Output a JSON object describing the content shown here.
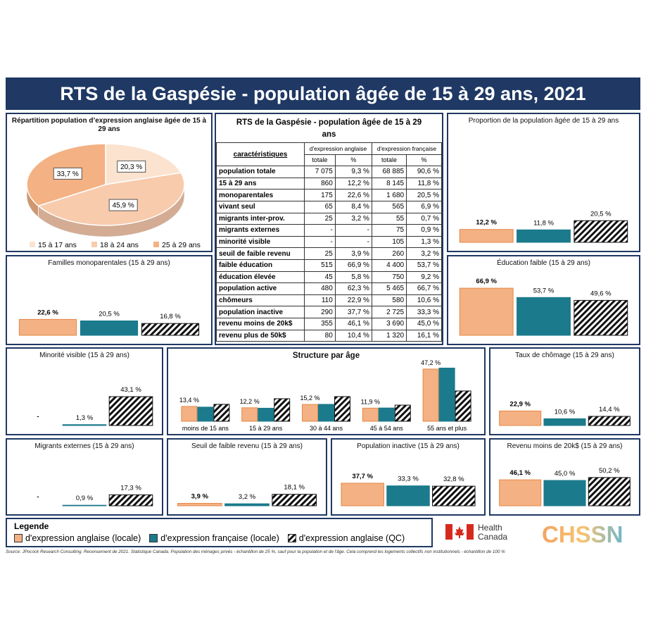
{
  "header": {
    "title": "RTS de la Gaspésie - population âgée de 15 à 29 ans, 2021"
  },
  "chart_data": [
    {
      "type": "pie",
      "title": "Répartition population d’expression anglaise âgée de 15 à 29 ans",
      "categories": [
        "15 à 17 ans",
        "18 à 24 ans",
        "25 à 29 ans"
      ],
      "values": [
        20.3,
        45.9,
        33.7
      ],
      "value_labels": [
        "20,3 %",
        "45,9 %",
        "33,7 %"
      ],
      "colors": [
        "#fbe3d0",
        "#f8cbad",
        "#f4b183"
      ]
    },
    {
      "type": "bar",
      "title": "Proportion de la population âgée de 15 à 29 ans",
      "values": [
        12.2,
        11.8,
        20.5
      ],
      "value_labels": [
        "12,2 %",
        "11,8 %",
        "20,5 %"
      ]
    },
    {
      "type": "bar",
      "title": "Familles monoparentales (15 à 29 ans)",
      "values": [
        22.6,
        20.5,
        16.8
      ],
      "value_labels": [
        "22,6 %",
        "20,5 %",
        "16,8 %"
      ]
    },
    {
      "type": "bar",
      "title": "Éducation faible (15 à 29 ans)",
      "values": [
        66.9,
        53.7,
        49.6
      ],
      "value_labels": [
        "66,9 %",
        "53,7 %",
        "49,6 %"
      ]
    },
    {
      "type": "bar",
      "title": "Minorité visible (15 à 29 ans)",
      "values": [
        null,
        1.3,
        43.1
      ],
      "value_labels": [
        "-",
        "1,3 %",
        "43,1 %"
      ]
    },
    {
      "type": "grouped-bar",
      "title": "Structure par âge",
      "categories": [
        "moins de 15 ans",
        "15 à 29 ans",
        "30 à 44 ans",
        "45 à 54 ans",
        "55 ans et plus"
      ],
      "series": [
        {
          "values": [
            13.4,
            12.2,
            15.2,
            11.9,
            47.2
          ],
          "value_labels": [
            "13,4 %",
            "12,2 %",
            "15,2 %",
            "11,9 %",
            "47,2 %"
          ]
        },
        {
          "values": [
            12.8,
            11.8,
            15.3,
            12.0,
            48.1
          ]
        },
        {
          "values": [
            15.3,
            20.4,
            22.3,
            14.6,
            27.4
          ]
        }
      ]
    },
    {
      "type": "bar",
      "title": "Taux de chômage (15 à 29 ans)",
      "values": [
        22.9,
        10.6,
        14.4
      ],
      "value_labels": [
        "22,9 %",
        "10,6 %",
        "14,4 %"
      ]
    },
    {
      "type": "bar",
      "title": "Migrants externes (15 à 29 ans)",
      "values": [
        null,
        0.9,
        17.3
      ],
      "value_labels": [
        "-",
        "0,9 %",
        "17,3 %"
      ]
    },
    {
      "type": "bar",
      "title": "Seuil de faible revenu (15 à 29 ans)",
      "values": [
        3.9,
        3.2,
        18.1
      ],
      "value_labels": [
        "3,9 %",
        "3,2 %",
        "18,1 %"
      ]
    },
    {
      "type": "bar",
      "title": "Population inactive (15 à 29 ans)",
      "values": [
        37.7,
        33.3,
        32.8
      ],
      "value_labels": [
        "37,7 %",
        "33,3 %",
        "32,8 %"
      ]
    },
    {
      "type": "bar",
      "title": "Revenu moins de 20k$ (15 à 29 ans)",
      "values": [
        46.1,
        45.0,
        50.2
      ],
      "value_labels": [
        "46,1 %",
        "45,0 %",
        "50,2 %"
      ]
    }
  ],
  "table": {
    "title": "RTS de la Gaspésie - population âgée de 15 à 29 ans",
    "header": [
      "caractéristiques",
      "d'expression anglaise",
      "d'expression française"
    ],
    "subheader": [
      "totale",
      "%",
      "totale",
      "%"
    ],
    "rows": [
      [
        "population totale",
        "7 075",
        "9,3 %",
        "68 885",
        "90,6 %"
      ],
      [
        "15 à 29 ans",
        "860",
        "12,2 %",
        "8 145",
        "11,8 %"
      ],
      [
        "monoparentales",
        "175",
        "22,6 %",
        "1 680",
        "20,5 %"
      ],
      [
        "vivant seul",
        "65",
        "8,4 %",
        "565",
        "6,9 %"
      ],
      [
        "migrants inter-prov.",
        "25",
        "3,2 %",
        "55",
        "0,7 %"
      ],
      [
        "migrants externes",
        "-",
        "-",
        "75",
        "0,9 %"
      ],
      [
        "minorité visible",
        "-",
        "-",
        "105",
        "1,3 %"
      ],
      [
        "seuil de faible revenu",
        "25",
        "3,9 %",
        "260",
        "3,2 %"
      ],
      [
        "faible éducation",
        "515",
        "66,9 %",
        "4 400",
        "53,7 %"
      ],
      [
        "éducation élevée",
        "45",
        "5,8 %",
        "750",
        "9,2 %"
      ],
      [
        "population active",
        "480",
        "62,3 %",
        "5 465",
        "66,7 %"
      ],
      [
        "chômeurs",
        "110",
        "22,9 %",
        "580",
        "10,6 %"
      ],
      [
        "population inactive",
        "290",
        "37,7 %",
        "2 725",
        "33,3 %"
      ],
      [
        "revenu moins de 20k$",
        "355",
        "46,1 %",
        "3 690",
        "45,0 %"
      ],
      [
        "revenu plus de 50k$",
        "80",
        "10,4 %",
        "1 320",
        "16,1 %"
      ]
    ]
  },
  "legend": {
    "title": "Legende",
    "items": [
      {
        "name": "d'expression anglaise (locale)",
        "color": "#f4b183"
      },
      {
        "name": "d'expression française (locale)",
        "color": "#1b7a8c"
      },
      {
        "name": "d'expression anglaise (QC)",
        "color": "#111111",
        "hatch": true
      }
    ]
  },
  "logos": {
    "health": [
      "Health",
      "Canada"
    ],
    "chssn": "CHSSN"
  },
  "source": "Source: JPocock Research Consulting. Recensement de 2021. Statistique Canada. Population des ménages privés - échantillon de 25 %, sauf pour la population et de l'âge. Cela comprend les logements collectifs non institutionnels - échantillon de 100 %"
}
